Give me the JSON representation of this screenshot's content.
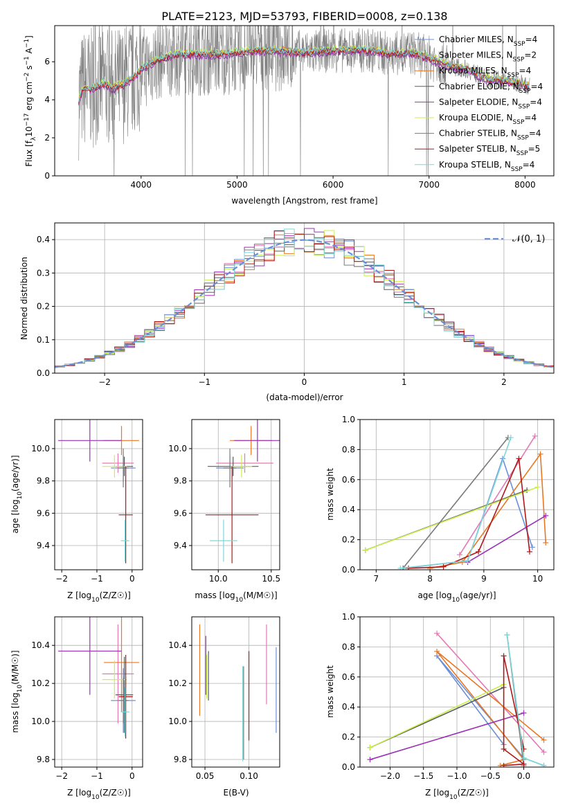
{
  "figure": {
    "title": "PLATE=2123, MJD=53793, FIBERID=0008, z=0.138"
  },
  "colors": {
    "Chabrier MILES": "#6b8fd6",
    "Salpeter MILES": "#e577b5",
    "Kroupa MILES": "#e87722",
    "Chabrier ELODIE": "#5c5c5c",
    "Salpeter ELODIE": "#9b30b6",
    "Kroupa ELODIE": "#c9ef4a",
    "Chabrier STELIB": "#7a7a7a",
    "Salpeter STELIB": "#b01818",
    "Kroupa STELIB": "#7fd6d6",
    "data": "#808080",
    "normal": "#6b8fd6"
  },
  "chart_data": [
    {
      "id": "spectrum",
      "type": "line",
      "xlabel": "wavelength [Angstrom, rest frame]",
      "ylabel": "Flux [f_λ 10^-17 erg cm^-2 s^-1 A^-1]",
      "xlim": [
        3100,
        8300
      ],
      "ylim": [
        0,
        7.9
      ],
      "xticks": [
        4000,
        5000,
        6000,
        7000,
        8000
      ],
      "yticks": [
        0,
        2,
        4,
        6
      ],
      "grid": false,
      "legend_position": "upper right",
      "data_series": {
        "name": "",
        "x": [
          3350,
          3400,
          3500,
          3600,
          3700,
          3800,
          3900,
          4000,
          4200,
          4400,
          4600,
          4800,
          5000,
          5200,
          5400,
          5600,
          5800,
          6000,
          6200,
          6400,
          6600,
          6800,
          7000,
          7200,
          7400,
          7600,
          7800,
          8000,
          8050
        ],
        "y": [
          4.0,
          4.6,
          4.6,
          4.9,
          4.6,
          4.8,
          5.1,
          5.6,
          6.2,
          6.4,
          6.4,
          6.4,
          6.5,
          6.6,
          6.6,
          6.5,
          6.5,
          6.6,
          6.6,
          6.6,
          6.4,
          6.5,
          6.2,
          5.8,
          5.6,
          5.1,
          5.0,
          4.8,
          4.7
        ]
      },
      "model_series": [
        {
          "name": "Chabrier MILES, N_SSP=4",
          "label_main": "Chabrier MILES, N",
          "label_sub": "SSP",
          "label_end": "=4",
          "color": "#6b8fd6",
          "offset": 0.0
        },
        {
          "name": "Salpeter MILES, N_SSP=2",
          "label_main": "Salpeter MILES, N",
          "label_sub": "SSP",
          "label_end": "=2",
          "color": "#e577b5",
          "offset": -0.05
        },
        {
          "name": "Kroupa MILES, N_SSP=4",
          "label_main": "Kroupa MILES, N",
          "label_sub": "SSP",
          "label_end": "=4",
          "color": "#e87722",
          "offset": 0.04
        },
        {
          "name": "Chabrier ELODIE, N_SSP=4",
          "label_main": "Chabrier ELODIE, N",
          "label_sub": "SSP",
          "label_end": "=4",
          "color": "#5c5c5c",
          "offset": -0.08
        },
        {
          "name": "Salpeter ELODIE, N_SSP=4",
          "label_main": "Salpeter ELODIE, N",
          "label_sub": "SSP",
          "label_end": "=4",
          "color": "#9b30b6",
          "offset": -0.12
        },
        {
          "name": "Kroupa ELODIE, N_SSP=4",
          "label_main": "Kroupa ELODIE, N",
          "label_sub": "SSP",
          "label_end": "=4",
          "color": "#c9ef4a",
          "offset": 0.1
        },
        {
          "name": "Chabrier STELIB, N_SSP=4",
          "label_main": "Chabrier STELIB, N",
          "label_sub": "SSP",
          "label_end": "=4",
          "color": "#7a7a7a",
          "offset": 0.02
        },
        {
          "name": "Salpeter STELIB, N_SSP=5",
          "label_main": "Salpeter STELIB, N",
          "label_sub": "SSP",
          "label_end": "=5",
          "color": "#b01818",
          "offset": -0.03
        },
        {
          "name": "Kroupa STELIB, N_SSP=4",
          "label_main": "Kroupa STELIB, N",
          "label_sub": "SSP",
          "label_end": "=4",
          "color": "#7fd6d6",
          "offset": 0.06
        }
      ]
    },
    {
      "id": "residuals",
      "type": "line",
      "xlabel": "(data-model)/error",
      "ylabel": "Normed distribution",
      "xlim": [
        -2.5,
        2.5
      ],
      "ylim": [
        0,
        0.45
      ],
      "xticks": [
        -2,
        -1,
        0,
        1,
        2
      ],
      "yticks": [
        0.0,
        0.1,
        0.2,
        0.3,
        0.4
      ],
      "grid": true,
      "legend_position": "upper right",
      "normal_label": "𝒩(0, 1)",
      "bin_width": 0.1
    },
    {
      "id": "age_vs_Z",
      "type": "scatter",
      "xlabel": "Z [log10(Z/Z☉)]",
      "ylabel": "age  [log10(age/yr)]",
      "xlim": [
        -2.2,
        0.3
      ],
      "ylim": [
        9.25,
        10.18
      ],
      "xticks": [
        -2,
        -1,
        0
      ],
      "yticks": [
        9.4,
        9.6,
        9.8,
        10.0
      ],
      "grid": true
    },
    {
      "id": "mass_vs_Z_age",
      "type": "scatter",
      "xlabel": "mass [log10(M/M☉)]",
      "xlim": [
        9.75,
        10.58
      ],
      "ylim": [
        9.25,
        10.18
      ],
      "xticks": [
        10.0,
        10.5
      ],
      "yticks": [
        9.4,
        9.6,
        9.8,
        10.0
      ],
      "grid": true
    },
    {
      "id": "massweight_vs_age",
      "type": "line",
      "xlabel": "age  [log10(age/yr)]",
      "ylabel": "mass weight",
      "xlim": [
        6.7,
        10.3
      ],
      "ylim": [
        0,
        1.0
      ],
      "xticks": [
        7,
        8,
        9,
        10
      ],
      "yticks": [
        0.0,
        0.2,
        0.4,
        0.6,
        0.8,
        1.0
      ],
      "grid": true
    },
    {
      "id": "mass_vs_Z",
      "type": "scatter",
      "xlabel": "Z [log10(Z/Z☉)]",
      "ylabel": "mass [log10(M/M☉)]",
      "xlim": [
        -2.2,
        0.3
      ],
      "ylim": [
        9.76,
        10.55
      ],
      "xticks": [
        -2,
        -1,
        0
      ],
      "yticks": [
        9.8,
        10.0,
        10.2,
        10.4
      ],
      "grid": true
    },
    {
      "id": "mass_vs_ebv",
      "type": "scatter",
      "xlabel": "E(B-V)",
      "xlim": [
        0.035,
        0.135
      ],
      "ylim": [
        9.76,
        10.55
      ],
      "xticks": [
        0.05,
        0.1
      ],
      "yticks": [
        9.8,
        10.0,
        10.2,
        10.4
      ],
      "grid": true
    },
    {
      "id": "massweight_vs_Z",
      "type": "line",
      "xlabel": "Z [log10(Z/Z☉)]",
      "ylabel": "mass weight",
      "xlim": [
        -2.45,
        0.45
      ],
      "ylim": [
        0,
        1.0
      ],
      "xticks": [
        -2.0,
        -1.5,
        -1.0,
        -0.5,
        0.0
      ],
      "yticks": [
        0.0,
        0.2,
        0.4,
        0.6,
        0.8,
        1.0
      ],
      "grid": true
    }
  ],
  "fits": [
    {
      "model": "Chabrier MILES",
      "color": "#6b8fd6",
      "Z": -0.25,
      "Z_err": 0.35,
      "age": 9.88,
      "age_err": 0.08,
      "mass": 10.11,
      "mass_err": 0.13,
      "mass_err_v": 0.17,
      "ebv": 0.131,
      "ebv_mass_lo": 9.94,
      "ebv_mass_hi": 10.39,
      "ssp_age": [
        7.5,
        8.7,
        9.35,
        9.9
      ],
      "ssp_Z": [
        0.3,
        0.0,
        -1.3,
        -0.3
      ],
      "ssp_w": [
        0.01,
        0.06,
        0.74,
        0.15
      ]
    },
    {
      "model": "Salpeter MILES",
      "color": "#e577b5",
      "Z": -0.4,
      "Z_err": 0.45,
      "age": 9.91,
      "age_err": 0.06,
      "mass": 10.25,
      "mass_err": 0.27,
      "mass_err_v": 0.26,
      "ebv": 0.12,
      "ebv_mass_lo": 10.09,
      "ebv_mass_hi": 10.51,
      "ssp_age": [
        8.55,
        9.95
      ],
      "ssp_Z": [
        0.3,
        -1.3
      ],
      "ssp_w": [
        0.1,
        0.89
      ]
    },
    {
      "model": "Kroupa MILES",
      "color": "#e87722",
      "Z": -0.3,
      "Z_err": 0.5,
      "age": 10.05,
      "age_err": 0.09,
      "mass": 10.31,
      "mass_err": 0.2,
      "mass_err_v": 0.26,
      "ebv": 0.044,
      "ebv_mass_lo": 10.03,
      "ebv_mass_hi": 10.51,
      "ssp_age": [
        8.0,
        8.6,
        10.05,
        10.15
      ],
      "ssp_Z": [
        -0.35,
        0.0,
        -1.3,
        0.3
      ],
      "ssp_w": [
        0.01,
        0.05,
        0.77,
        0.18
      ]
    },
    {
      "model": "Chabrier ELODIE",
      "color": "#5c5c5c",
      "Z": -0.22,
      "Z_err": 0.25,
      "age": 9.89,
      "age_err": 0.06,
      "mass": 10.14,
      "mass_err": 0.24,
      "mass_err_v": 0.2,
      "ebv": 0.054,
      "ebv_mass_lo": 10.11,
      "ebv_mass_hi": 10.37,
      "ssp_age": [
        6.8,
        9.8
      ],
      "ssp_Z": [
        -2.3,
        -0.3
      ],
      "ssp_w": [
        0.13,
        0.53
      ]
    },
    {
      "model": "Salpeter ELODIE",
      "color": "#9b30b6",
      "Z": -1.2,
      "Z_err": 0.9,
      "age": 10.05,
      "age_err": 0.13,
      "mass": 10.37,
      "mass_err": 0.22,
      "mass_err_v": 0.23,
      "ebv": 0.051,
      "ebv_mass_lo": 10.14,
      "ebv_mass_hi": 10.45,
      "ssp_age": [
        8.7,
        10.15
      ],
      "ssp_Z": [
        -2.3,
        0.0
      ],
      "ssp_w": [
        0.05,
        0.36
      ]
    },
    {
      "model": "Kroupa ELODIE",
      "color": "#c9ef4a",
      "Z": -0.5,
      "Z_err": 0.35,
      "age": 9.89,
      "age_err": 0.07,
      "mass": 10.22,
      "mass_err": 0.1,
      "mass_err_v": 0.1,
      "ebv": 0.052,
      "ebv_mass_lo": 10.12,
      "ebv_mass_hi": 10.35,
      "ssp_age": [
        6.8,
        10.0
      ],
      "ssp_Z": [
        -2.3,
        -0.3
      ],
      "ssp_w": [
        0.13,
        0.55
      ]
    },
    {
      "model": "Chabrier STELIB",
      "color": "#7a7a7a",
      "Z": -0.25,
      "Z_err": 0.15,
      "age": 9.88,
      "age_err": 0.12,
      "mass": 10.11,
      "mass_err": 0.06,
      "mass_err_v": 0.12,
      "ebv": 0.094,
      "ebv_mass_lo": 9.8,
      "ebv_mass_hi": 10.29,
      "ssp_age": [
        7.5,
        9.45
      ],
      "ssp_Z": [
        0.0,
        -0.25
      ],
      "ssp_w": [
        0.01,
        0.88
      ]
    },
    {
      "model": "Salpeter STELIB",
      "color": "#b01818",
      "Z": -0.18,
      "Z_err": 0.2,
      "age": 9.59,
      "age_err": 0.3,
      "mass": 10.13,
      "mass_err": 0.25,
      "mass_err_v": 0.22,
      "ebv": 0.1,
      "ebv_mass_lo": 9.9,
      "ebv_mass_hi": 10.37,
      "ssp_age": [
        7.6,
        8.25,
        8.9,
        9.65,
        9.85
      ],
      "ssp_Z": [
        -0.3,
        0.0,
        -0.3,
        -0.3,
        0.0
      ],
      "ssp_w": [
        0.01,
        0.02,
        0.12,
        0.74,
        0.12
      ]
    },
    {
      "model": "Kroupa STELIB",
      "color": "#7fd6d6",
      "Z": -0.2,
      "Z_err": 0.12,
      "age": 9.43,
      "age_err": 0.13,
      "mass": 10.05,
      "mass_err": 0.13,
      "mass_err_v": 0.13,
      "ebv": 0.093,
      "ebv_mass_lo": 9.79,
      "ebv_mass_hi": 10.29,
      "ssp_age": [
        7.45,
        8.7,
        9.5
      ],
      "ssp_Z": [
        0.3,
        0.0,
        -0.25
      ],
      "ssp_w": [
        0.01,
        0.06,
        0.88
      ]
    }
  ],
  "labels": {
    "p3_ylabel_main": "age  [log",
    "p3_ylabel_sub": "10",
    "p3_ylabel_end": "(age/yr)]",
    "zlabel_main": "Z [log",
    "zlabel_sub": "10",
    "zlabel_end": "(Z/Z☉)]",
    "masslabel_main": "mass [log",
    "masslabel_sub": "10",
    "masslabel_end": "(M/M☉)]",
    "agelabel_main": "age  [log",
    "agelabel_sub": "10",
    "agelabel_end": "(age/yr)]",
    "flux_main": "Flux [f",
    "flux_sub": "λ",
    "flux_mid": "10",
    "flux_exp1": "−17",
    "flux_mid2": " erg cm",
    "flux_exp2": "−2",
    "flux_mid3": " s",
    "flux_exp3": "−1",
    "flux_mid4": " A",
    "flux_exp4": "−1",
    "flux_end": "]"
  }
}
